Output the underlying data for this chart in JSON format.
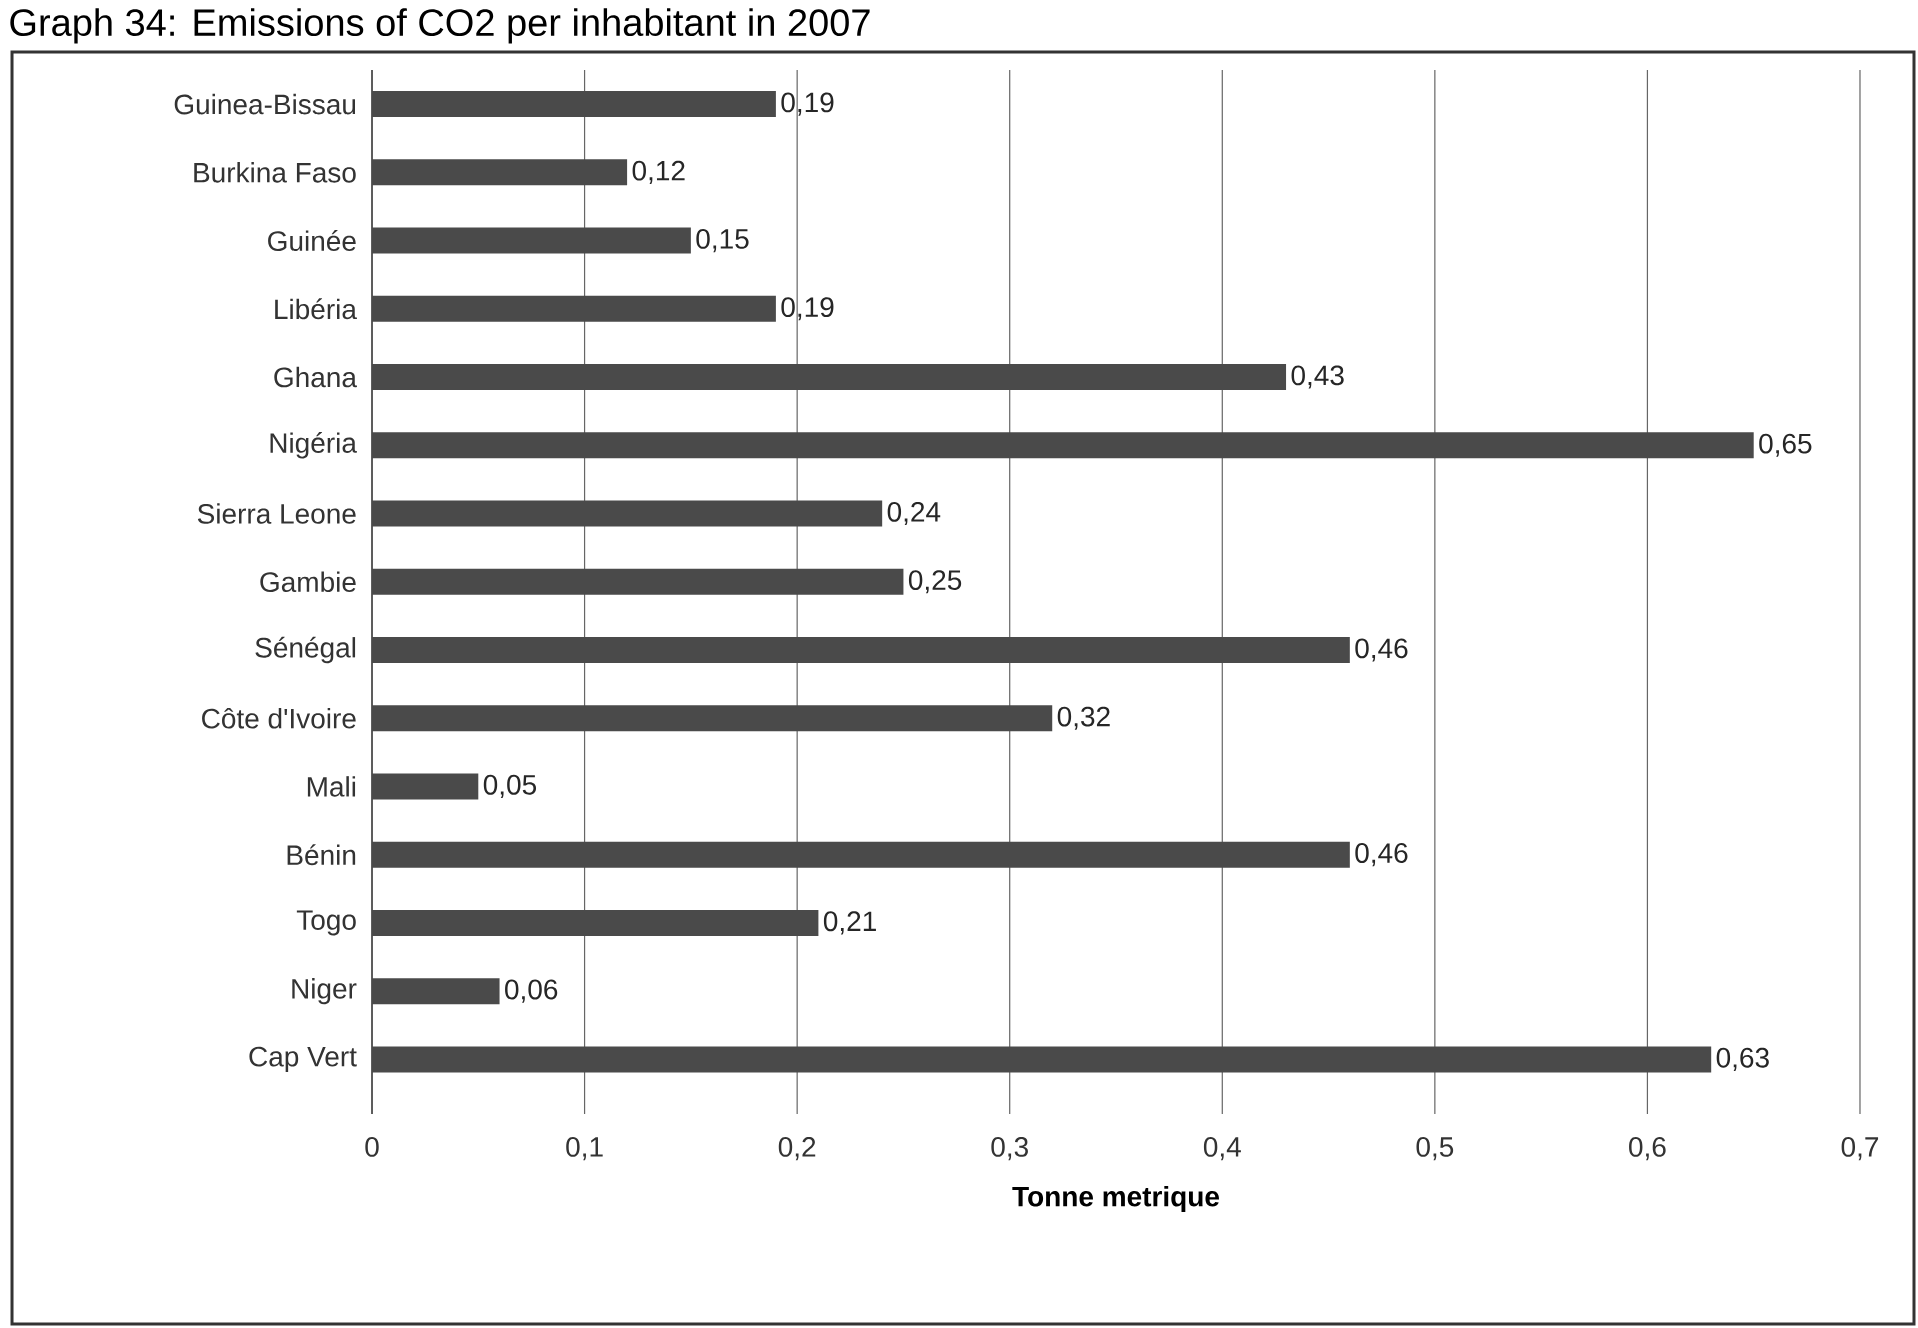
{
  "chart_data": {
    "type": "bar",
    "orientation": "horizontal",
    "title": "Graph 34: Emissions of CO2 per inhabitant in 2007",
    "xlabel": "Tonne metrique",
    "categories": [
      "Guinea-Bissau",
      "Burkina Faso",
      "Guinée",
      "Libéria",
      "Ghana",
      "Nigéria",
      "Sierra Leone",
      "Gambie",
      "Sénégal",
      "Côte d'Ivoire",
      "Mali",
      "Bénin",
      "Togo",
      "Niger",
      "Cap Vert"
    ],
    "values": [
      0.19,
      0.12,
      0.15,
      0.19,
      0.43,
      0.65,
      0.24,
      0.25,
      0.46,
      0.32,
      0.05,
      0.46,
      0.21,
      0.06,
      0.63
    ],
    "value_labels": [
      "0,19",
      "0,12",
      "0,15",
      "0,19",
      "0,43",
      "0,65",
      "0,24",
      "0,25",
      "0,46",
      "0,32",
      "0,05",
      "0,46",
      "0,21",
      "0,06",
      "0,63"
    ],
    "color": "#4a4a4a",
    "xlim": [
      0,
      0.7
    ],
    "xticks": [
      0,
      {
        "value": 0.1,
        "label": "0,1"
      },
      {
        "value": 0.2,
        "label": "0,2"
      },
      {
        "value": 0.3,
        "label": "0,3"
      },
      {
        "value": 0.4,
        "label": "0,4"
      },
      {
        "value": 0.5,
        "label": "0,5"
      },
      {
        "value": 0.6,
        "label": "0,6"
      },
      {
        "value": 0.7,
        "label": "0,7"
      }
    ],
    "grid": "x"
  }
}
